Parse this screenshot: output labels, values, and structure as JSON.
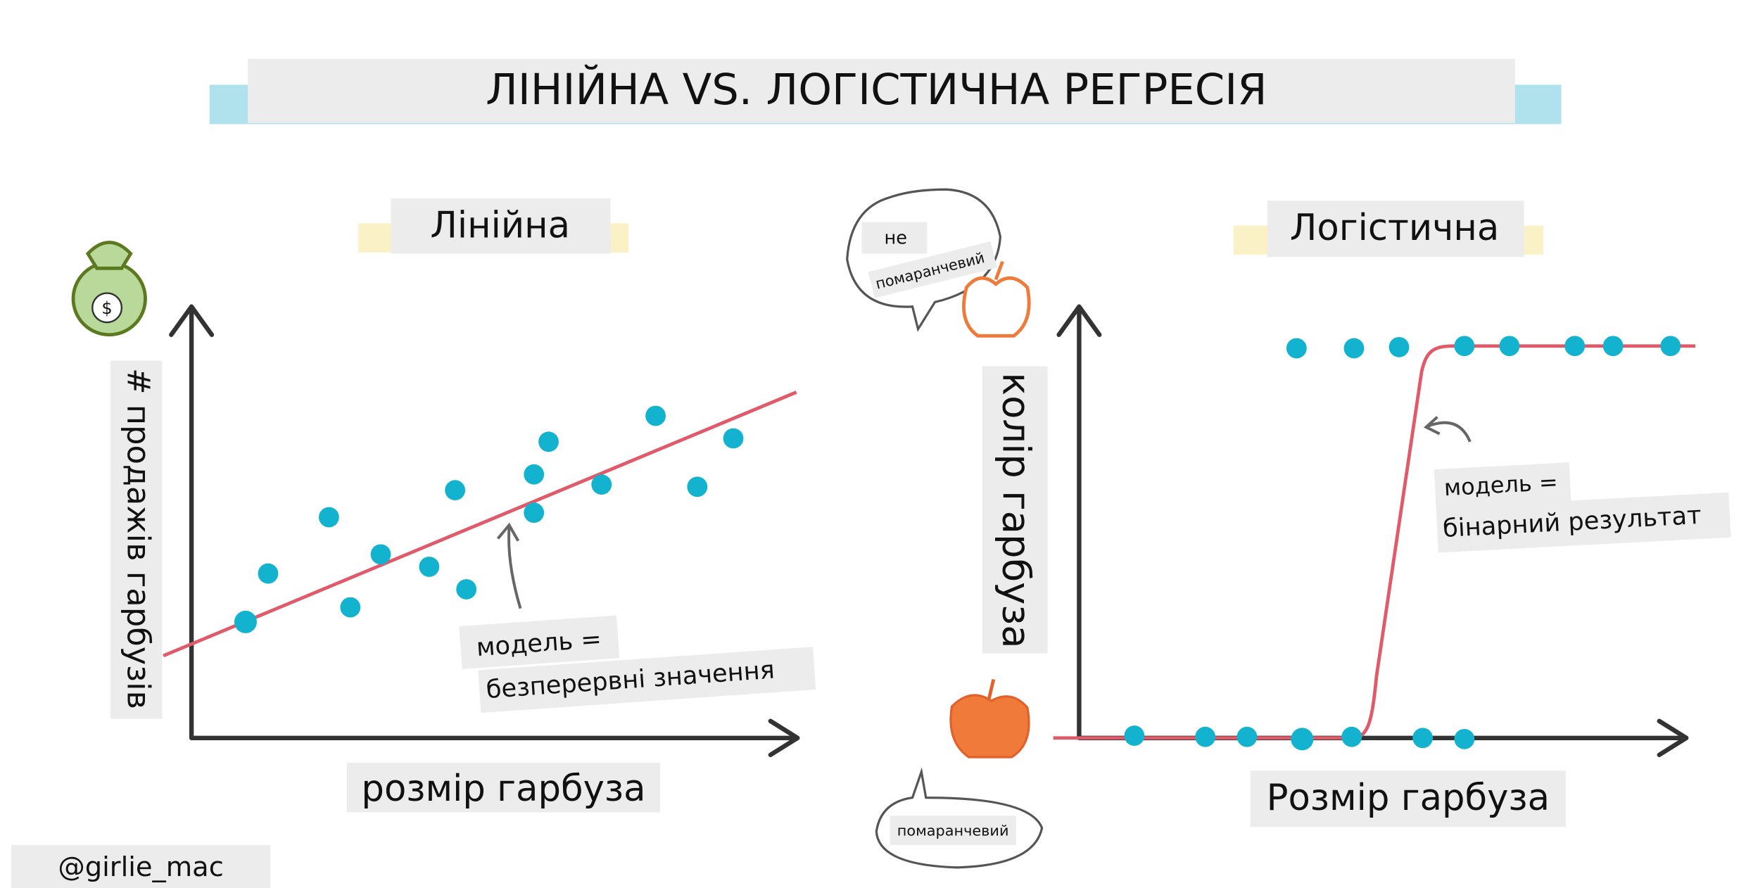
{
  "title": "ЛІНІЙНА VS. ЛОГІСТИЧНА РЕГРЕСІЯ",
  "linear": {
    "heading": "Лінійна",
    "y_label": "# продажів гарбузів",
    "x_label": "розмір гарбуза",
    "annotation": [
      "модель =",
      "безперервні значення"
    ],
    "icon": "$"
  },
  "logistic": {
    "heading": "Логістична",
    "y_label": "колір гарбуза",
    "x_label": "Розмір гарбуза",
    "annotation": [
      "модель =",
      "бінарний результат"
    ],
    "bubble_top": [
      "не",
      "помаранчевий"
    ],
    "bubble_bottom": "помаранчевий"
  },
  "credit": "@girlie_mac"
}
